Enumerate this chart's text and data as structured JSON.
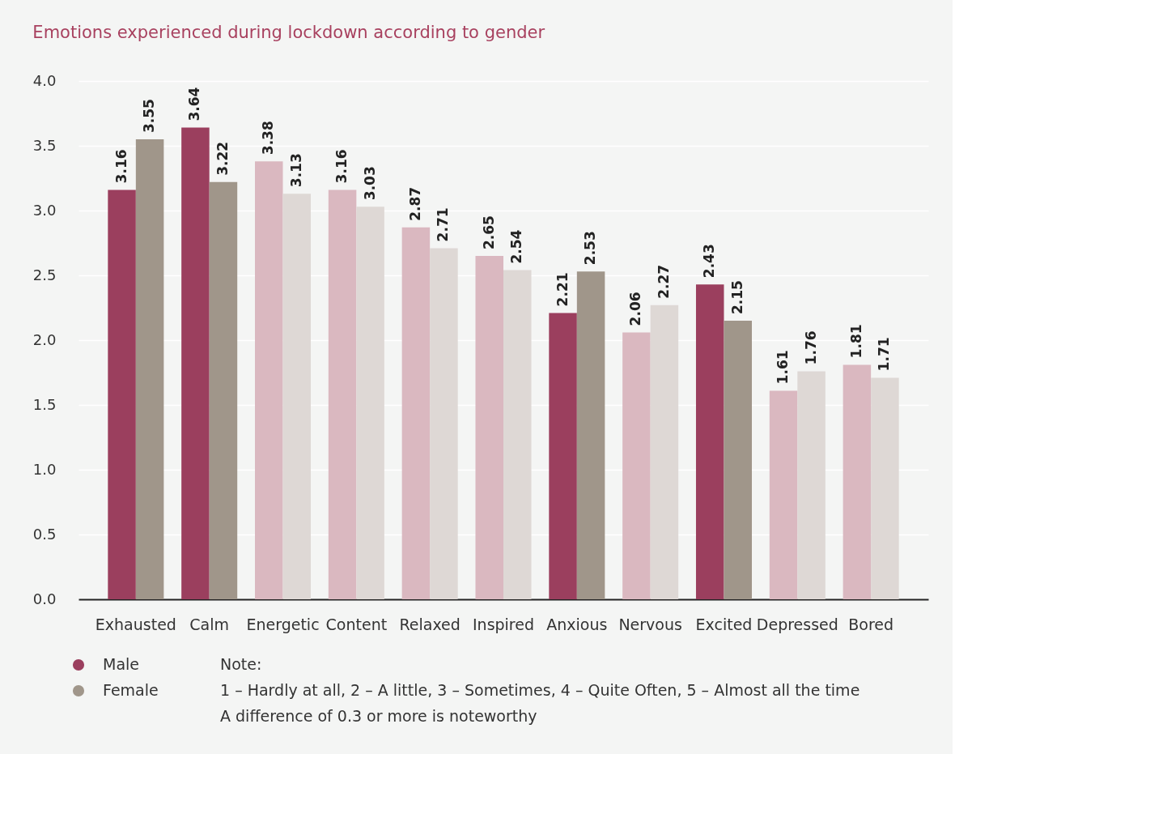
{
  "chart_data": {
    "type": "bar",
    "title": "Emotions experienced during lockdown according to gender",
    "categories": [
      "Exhausted",
      "Calm",
      "Energetic",
      "Content",
      "Relaxed",
      "Inspired",
      "Anxious",
      "Nervous",
      "Excited",
      "Depressed",
      "Bored"
    ],
    "series": [
      {
        "name": "Male",
        "color": "#9b3f5e",
        "colors": [
          "#9b3f5e",
          "#9b3f5e",
          "#dab8c0",
          "#dab8c0",
          "#dab8c0",
          "#dab8c0",
          "#9b3f5e",
          "#dab8c0",
          "#9b3f5e",
          "#dab8c0",
          "#dab8c0"
        ],
        "values": [
          3.16,
          3.64,
          3.38,
          3.16,
          2.87,
          2.65,
          2.21,
          2.06,
          2.43,
          1.61,
          1.81
        ]
      },
      {
        "name": "Female",
        "color": "#a0968a",
        "colors": [
          "#a0968a",
          "#a0968a",
          "#ded8d5",
          "#ded8d5",
          "#ded8d5",
          "#ded8d5",
          "#a0968a",
          "#ded8d5",
          "#a0968a",
          "#ded8d5",
          "#ded8d5"
        ],
        "values": [
          3.55,
          3.22,
          3.13,
          3.03,
          2.71,
          2.54,
          2.53,
          2.27,
          2.15,
          1.76,
          1.71
        ]
      }
    ],
    "ylim": [
      0,
      4
    ],
    "yticks": [
      {
        "value": 0,
        "label": "0.0"
      },
      {
        "value": 0.5,
        "label": "0.5"
      },
      {
        "value": 1,
        "label": "1.0"
      },
      {
        "value": 1.5,
        "label": "1.5"
      },
      {
        "value": 2,
        "label": "2.0"
      },
      {
        "value": 2.5,
        "label": "2.5"
      },
      {
        "value": 3,
        "label": "3.0"
      },
      {
        "value": 3.5,
        "label": "3.5"
      },
      {
        "value": 4,
        "label": "4.0"
      }
    ],
    "grid": "y",
    "data_labels": true,
    "legend": "bottom left",
    "annotations": [
      "Note:",
      "1 – Hardly at all, 2 – A little, 3 – Sometimes, 4 – Quite Often, 5 – Almost all the time",
      "A difference of 0.3 or more is noteworthy"
    ]
  }
}
